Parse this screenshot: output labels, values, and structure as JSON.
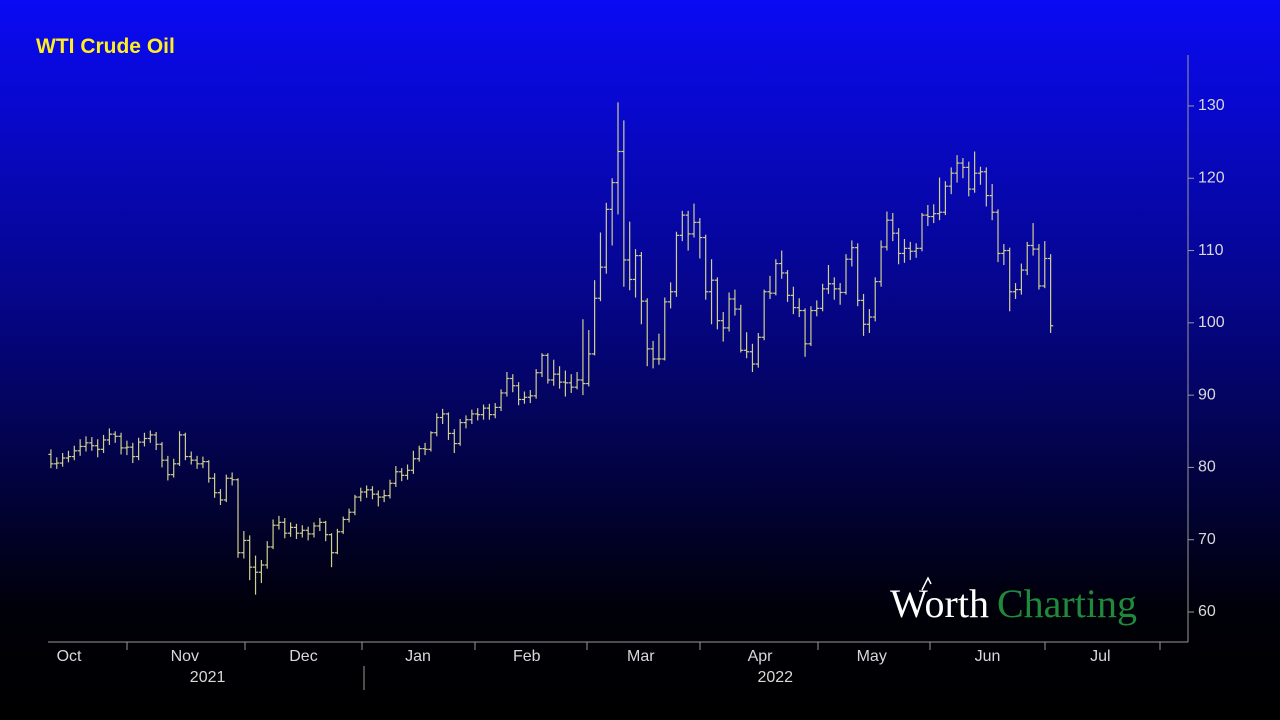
{
  "chart_data": {
    "type": "ohlc",
    "title": "WTI Crude Oil",
    "watermark": [
      "Worth",
      "Charting"
    ],
    "color": "#cfcf8e",
    "xlim": [
      -0.5,
      194.5
    ],
    "ylim": [
      55.85,
      137.05
    ],
    "yticks": [
      60,
      70,
      80,
      90,
      100,
      110,
      120,
      130
    ],
    "xticks": [
      {
        "value": 3.1,
        "label": "Oct"
      },
      {
        "value": 22.9,
        "label": "Nov"
      },
      {
        "value": 43.2,
        "label": "Dec"
      },
      {
        "value": 62.8,
        "label": "Jan"
      },
      {
        "value": 81.4,
        "label": "Feb"
      },
      {
        "value": 100.9,
        "label": "Mar"
      },
      {
        "value": 121.3,
        "label": "Apr"
      },
      {
        "value": 140.4,
        "label": "May"
      },
      {
        "value": 160.2,
        "label": "Jun"
      },
      {
        "value": 179.5,
        "label": "Jul"
      }
    ],
    "year_ticks": [
      {
        "value": 26.8,
        "label": "2021"
      },
      {
        "value": 123.9,
        "label": "2022"
      }
    ],
    "open": [
      81.8,
      80.5,
      80.6,
      81.3,
      81.5,
      82.3,
      82.9,
      83.4,
      83.0,
      82.5,
      83.8,
      84.6,
      84.3,
      82.7,
      82.8,
      81.5,
      83.5,
      84.0,
      84.5,
      83.2,
      81.0,
      79.0,
      80.5,
      84.5,
      81.5,
      81.0,
      80.5,
      80.8,
      78.5,
      76.5,
      75.5,
      78.5,
      78.3,
      68.2,
      69.9,
      66.2,
      65.5,
      66.5,
      69.0,
      72.0,
      72.4,
      70.9,
      71.7,
      70.9,
      71.3,
      70.8,
      71.9,
      72.4,
      70.7,
      68.2,
      71.1,
      72.8,
      73.8,
      75.9,
      76.6,
      76.9,
      76.3,
      75.9,
      76.1,
      77.8,
      79.4,
      78.9,
      79.6,
      81.2,
      82.6,
      82.5,
      84.8,
      86.9,
      87.4,
      84.7,
      83.3,
      86.2,
      86.6,
      87.4,
      87.3,
      88.2,
      87.3,
      88.3,
      90.3,
      92.3,
      91.3,
      89.4,
      89.7,
      89.9,
      93.1,
      95.5,
      92.1,
      92.9,
      91.8,
      91.7,
      91.1,
      92.1,
      91.6,
      95.7,
      103.4,
      107.7,
      115.7,
      119.4,
      123.7,
      108.7,
      106.0,
      109.3,
      103.0,
      96.4,
      95.0,
      95.0,
      102.9,
      104.3,
      112.1,
      114.9,
      112.3,
      113.9,
      111.8,
      104.3,
      105.9,
      100.3,
      99.3,
      103.3,
      101.9,
      96.2,
      96.0,
      94.3,
      98.0,
      104.3,
      104.1,
      108.2,
      106.9,
      103.8,
      102.1,
      101.7,
      97.1,
      101.7,
      102.0,
      104.7,
      105.4,
      104.7,
      104.2,
      108.8,
      110.4,
      103.1,
      99.8,
      100.8,
      105.7,
      110.5,
      114.2,
      112.4,
      109.6,
      110.3,
      109.9,
      110.3,
      114.9,
      114.7,
      115.1,
      115.3,
      118.9,
      120.7,
      122.1,
      121.5,
      118.5,
      120.7,
      120.9,
      117.6,
      115.3,
      109.6,
      110.0,
      104.3,
      104.6,
      107.3,
      110.7,
      110.2,
      105.1,
      108.9
    ],
    "high": [
      82.5,
      81.4,
      82.0,
      82.3,
      83.0,
      83.9,
      84.3,
      84.2,
      83.9,
      84.5,
      85.4,
      85.0,
      84.8,
      83.7,
      83.4,
      84.1,
      84.8,
      85.1,
      84.9,
      83.5,
      81.6,
      81.2,
      85.0,
      84.8,
      82.2,
      81.6,
      81.5,
      81.0,
      79.2,
      77.0,
      79.0,
      79.3,
      78.5,
      71.2,
      70.6,
      67.8,
      67.2,
      69.8,
      72.8,
      73.3,
      73.0,
      72.4,
      72.2,
      72.0,
      71.8,
      72.4,
      73.0,
      72.6,
      70.9,
      71.5,
      73.2,
      74.3,
      76.2,
      77.2,
      77.5,
      77.4,
      76.8,
      76.9,
      78.3,
      80.2,
      79.9,
      80.4,
      82.3,
      83.0,
      83.4,
      85.0,
      87.5,
      88.1,
      87.6,
      85.3,
      86.7,
      87.2,
      88.0,
      88.2,
      88.7,
      88.8,
      88.9,
      90.8,
      93.2,
      92.9,
      91.8,
      90.5,
      90.7,
      93.6,
      95.8,
      95.8,
      94.9,
      94.0,
      93.4,
      92.9,
      93.2,
      100.5,
      99.0,
      105.9,
      112.5,
      116.6,
      120.0,
      130.5,
      128.0,
      114.0,
      110.2,
      109.8,
      103.4,
      97.5,
      98.5,
      103.5,
      105.6,
      112.6,
      115.5,
      115.5,
      116.5,
      114.5,
      112.2,
      108.8,
      106.3,
      101.5,
      104.2,
      104.6,
      102.5,
      98.7,
      97.1,
      98.6,
      104.6,
      106.5,
      108.8,
      110.0,
      107.3,
      105.0,
      103.4,
      102.0,
      102.3,
      103.1,
      105.4,
      108.0,
      106.3,
      105.5,
      109.5,
      111.4,
      111.0,
      104.0,
      101.9,
      106.3,
      111.4,
      115.4,
      115.2,
      113.1,
      111.6,
      111.2,
      111.0,
      115.2,
      116.3,
      116.4,
      120.1,
      119.6,
      121.5,
      123.2,
      122.8,
      122.3,
      123.7,
      121.6,
      121.5,
      119.2,
      115.7,
      110.9,
      110.4,
      105.5,
      108.2,
      111.2,
      113.8,
      110.9,
      111.3,
      109.5
    ],
    "low": [
      79.9,
      79.8,
      80.1,
      80.7,
      81.0,
      81.6,
      82.2,
      82.3,
      81.4,
      82.0,
      83.1,
      83.4,
      81.8,
      81.7,
      80.6,
      81.0,
      82.9,
      83.4,
      82.4,
      80.0,
      78.2,
      78.6,
      80.2,
      81.0,
      80.4,
      79.8,
      79.9,
      77.9,
      75.8,
      74.8,
      75.2,
      77.5,
      67.5,
      67.4,
      64.4,
      62.4,
      64.0,
      66.0,
      68.7,
      71.4,
      70.2,
      70.4,
      70.1,
      70.3,
      69.9,
      70.3,
      71.2,
      69.8,
      66.2,
      68.0,
      70.8,
      72.4,
      73.4,
      75.3,
      75.8,
      75.6,
      74.6,
      75.2,
      75.7,
      77.3,
      78.1,
      78.3,
      79.1,
      80.8,
      81.7,
      82.2,
      84.3,
      86.0,
      83.8,
      82.0,
      83.0,
      85.4,
      86.0,
      86.5,
      86.6,
      86.6,
      86.8,
      87.8,
      89.8,
      90.4,
      88.6,
      88.8,
      88.9,
      89.5,
      92.5,
      91.6,
      91.3,
      90.9,
      89.8,
      90.3,
      90.8,
      90.0,
      91.2,
      95.5,
      103.0,
      106.8,
      110.7,
      115.0,
      105.0,
      104.5,
      103.5,
      99.8,
      94.0,
      93.7,
      94.2,
      94.8,
      102.0,
      103.6,
      111.3,
      110.0,
      111.8,
      108.9,
      103.2,
      99.8,
      99.1,
      97.4,
      98.8,
      101.0,
      95.9,
      95.1,
      93.2,
      93.8,
      97.6,
      103.3,
      103.8,
      106.1,
      102.9,
      101.2,
      100.8,
      95.3,
      96.8,
      100.9,
      101.6,
      104.0,
      103.2,
      102.5,
      103.9,
      107.8,
      102.3,
      98.2,
      98.6,
      100.2,
      105.0,
      110.0,
      111.3,
      108.1,
      108.3,
      108.7,
      109.0,
      109.9,
      113.4,
      113.8,
      114.2,
      114.9,
      117.8,
      119.4,
      120.0,
      117.5,
      118.0,
      119.1,
      116.1,
      114.2,
      108.4,
      108.0,
      101.6,
      103.3,
      103.9,
      106.6,
      109.3,
      104.6,
      104.8,
      98.6
    ],
    "close": [
      80.5,
      80.6,
      81.3,
      81.5,
      82.3,
      82.9,
      83.4,
      83.0,
      82.5,
      83.8,
      84.6,
      84.3,
      82.7,
      82.8,
      81.5,
      83.5,
      84.0,
      84.5,
      83.2,
      81.0,
      79.0,
      80.5,
      84.5,
      81.5,
      81.0,
      80.5,
      80.8,
      78.5,
      76.5,
      75.5,
      78.5,
      78.3,
      68.2,
      69.9,
      66.2,
      65.5,
      66.5,
      69.0,
      72.0,
      72.4,
      70.9,
      71.7,
      70.9,
      71.3,
      70.8,
      71.9,
      72.4,
      70.7,
      68.2,
      71.1,
      72.8,
      73.8,
      75.9,
      76.6,
      76.9,
      76.3,
      75.9,
      76.1,
      77.8,
      79.4,
      78.9,
      79.6,
      81.2,
      82.6,
      82.5,
      84.8,
      86.9,
      87.4,
      84.7,
      83.3,
      86.2,
      86.6,
      87.4,
      87.3,
      88.2,
      87.3,
      88.3,
      90.3,
      92.3,
      91.3,
      89.4,
      89.7,
      89.9,
      93.1,
      95.5,
      92.1,
      92.9,
      91.8,
      91.7,
      91.1,
      92.1,
      91.6,
      95.7,
      103.4,
      107.7,
      115.7,
      119.4,
      123.7,
      108.7,
      106.0,
      109.3,
      103.0,
      96.4,
      95.0,
      95.0,
      102.9,
      104.3,
      112.1,
      114.9,
      112.3,
      113.9,
      111.8,
      104.3,
      105.9,
      100.3,
      99.3,
      103.3,
      101.9,
      96.2,
      96.0,
      94.3,
      98.0,
      104.3,
      104.1,
      108.2,
      106.9,
      103.8,
      102.1,
      101.7,
      97.1,
      101.7,
      102.0,
      104.7,
      105.4,
      104.7,
      104.2,
      108.8,
      110.4,
      103.1,
      99.8,
      100.8,
      105.7,
      110.5,
      114.2,
      112.4,
      109.6,
      110.3,
      109.9,
      110.3,
      114.9,
      114.7,
      115.1,
      115.3,
      118.9,
      120.7,
      122.1,
      121.5,
      118.5,
      120.7,
      120.9,
      117.6,
      115.3,
      109.6,
      110.0,
      104.3,
      104.6,
      107.3,
      110.7,
      110.2,
      105.1,
      108.9,
      99.6
    ]
  }
}
